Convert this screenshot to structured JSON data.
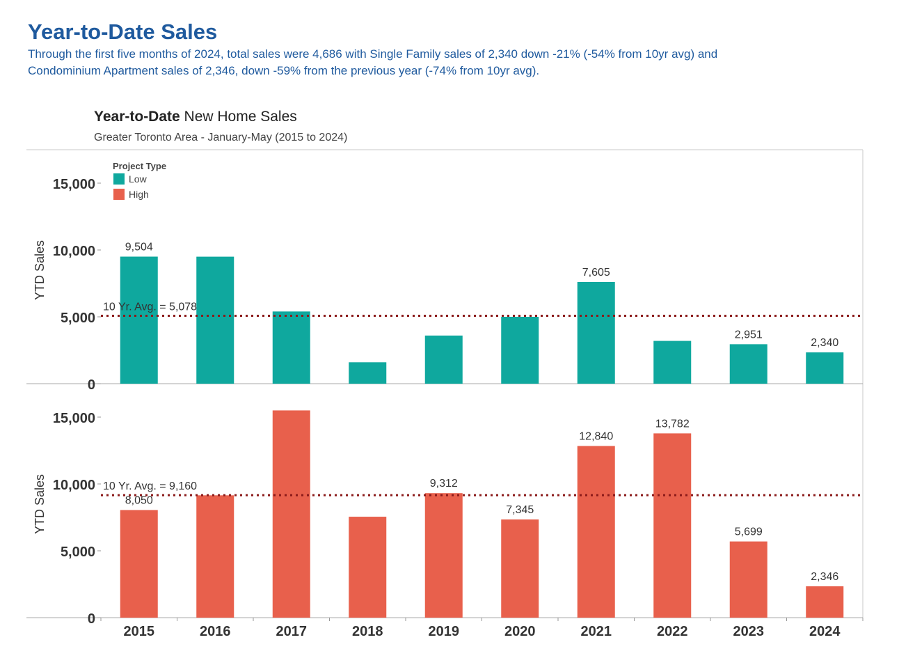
{
  "header": {
    "title": "Year-to-Date Sales",
    "subtitle": "Through the first five months of 2024, total sales were 4,686 with Single Family sales of 2,340 down -21% (-54% from 10yr avg) and Condominium Apartment sales of 2,346, down -59% from the previous year (-74% from 10yr avg)."
  },
  "chart_data": {
    "type": "bar",
    "title_bold": "Year-to-Date",
    "title_rest": " New Home Sales",
    "subtitle": "Greater Toronto Area - January-May (2015 to 2024)",
    "ylabel": "YTD Sales",
    "xlabel": "",
    "categories": [
      "2015",
      "2016",
      "2017",
      "2018",
      "2019",
      "2020",
      "2021",
      "2022",
      "2023",
      "2024"
    ],
    "ylim": [
      0,
      17500
    ],
    "yticks": [
      0,
      5000,
      10000,
      15000
    ],
    "ytick_labels": [
      "0",
      "5,000",
      "10,000",
      "15,000"
    ],
    "legend": {
      "title": "Project Type",
      "position": "top-left",
      "items": [
        {
          "label": "Low",
          "color": "#0fa89e"
        },
        {
          "label": "High",
          "color": "#e8604c"
        }
      ]
    },
    "grid": false,
    "average_line_color": "#8b1a1a",
    "series": [
      {
        "name": "Low",
        "color": "#0fa89e",
        "values": [
          9504,
          9500,
          5400,
          1600,
          3600,
          5000,
          7605,
          3200,
          2951,
          2340
        ],
        "data_labels": [
          "9,504",
          "",
          "",
          "",
          "",
          "",
          "7,605",
          "",
          "2,951",
          "2,340"
        ],
        "average": 5078,
        "average_label": "10 Yr. Avg. = 5,078"
      },
      {
        "name": "High",
        "color": "#e8604c",
        "values": [
          8050,
          9150,
          15500,
          7550,
          9312,
          7345,
          12840,
          13782,
          5699,
          2346
        ],
        "data_labels": [
          "8,050",
          "",
          "",
          "",
          "9,312",
          "7,345",
          "12,840",
          "13,782",
          "5,699",
          "2,346"
        ],
        "average": 9160,
        "average_label": "10 Yr. Avg. = 9,160"
      }
    ]
  }
}
